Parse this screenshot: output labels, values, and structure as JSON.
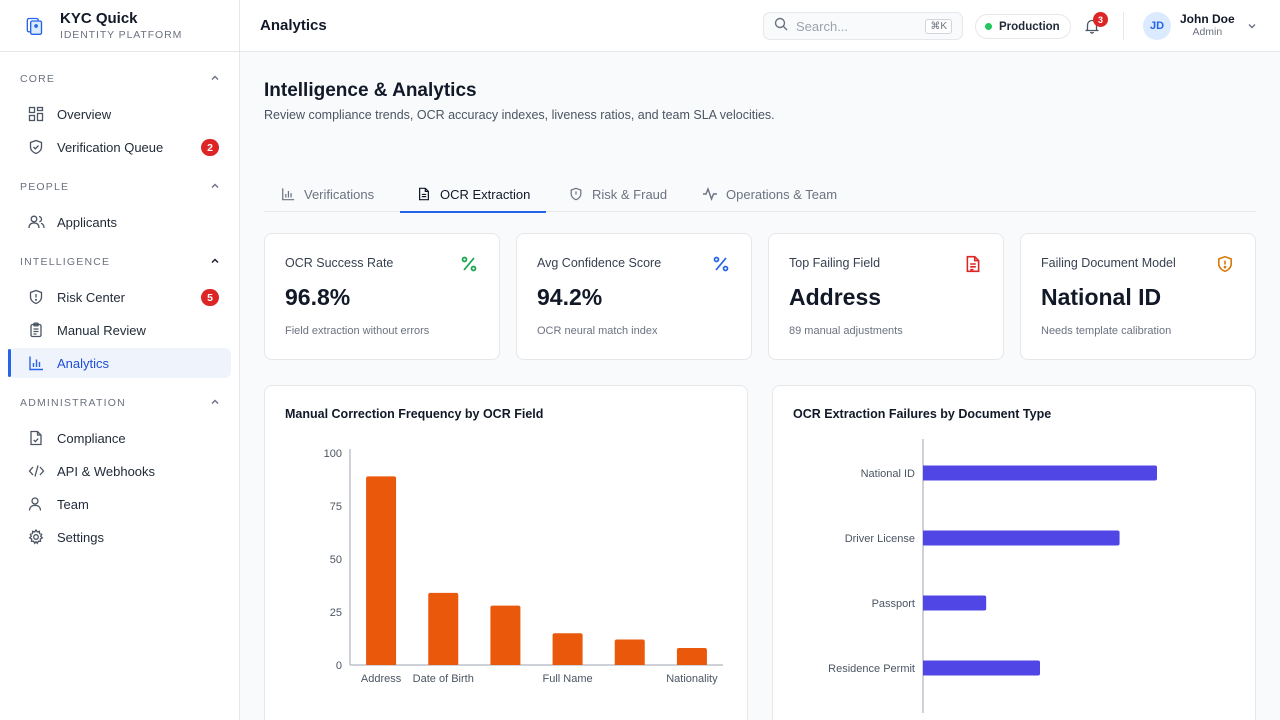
{
  "brand": {
    "name": "KYC Quick",
    "subtitle": "IDENTITY PLATFORM",
    "logo_icon": "shield-logo-icon"
  },
  "sidebar": {
    "sections": [
      {
        "title": "CORE",
        "items": [
          {
            "label": "Overview",
            "icon": "grid-icon",
            "badge": null,
            "active": false
          },
          {
            "label": "Verification Queue",
            "icon": "shield-check-icon",
            "badge": "2",
            "active": false
          }
        ]
      },
      {
        "title": "PEOPLE",
        "items": [
          {
            "label": "Applicants",
            "icon": "users-icon",
            "badge": null,
            "active": false
          }
        ]
      },
      {
        "title": "INTELLIGENCE",
        "items": [
          {
            "label": "Risk Center",
            "icon": "shield-alert-icon",
            "badge": "5",
            "active": false
          },
          {
            "label": "Manual Review",
            "icon": "clipboard-icon",
            "badge": null,
            "active": false
          },
          {
            "label": "Analytics",
            "icon": "bar-chart-icon",
            "badge": null,
            "active": true
          }
        ]
      },
      {
        "title": "ADMINISTRATION",
        "items": [
          {
            "label": "Compliance",
            "icon": "file-check-icon",
            "badge": null,
            "active": false
          },
          {
            "label": "API & Webhooks",
            "icon": "code-icon",
            "badge": null,
            "active": false
          },
          {
            "label": "Team",
            "icon": "user-icon",
            "badge": null,
            "active": false
          },
          {
            "label": "Settings",
            "icon": "gear-icon",
            "badge": null,
            "active": false
          }
        ]
      }
    ]
  },
  "topbar": {
    "title": "Analytics",
    "search_placeholder": "Search...",
    "search_shortcut": "⌘K",
    "environment": "Production",
    "notifications_count": "3",
    "user": {
      "initials": "JD",
      "name": "John Doe",
      "role": "Admin"
    }
  },
  "page": {
    "title": "Intelligence & Analytics",
    "subtitle": "Review compliance trends, OCR accuracy indexes, liveness ratios, and team SLA velocities."
  },
  "tabs": [
    {
      "label": "Verifications",
      "icon": "bar-chart-icon",
      "active": false
    },
    {
      "label": "OCR Extraction",
      "icon": "document-icon",
      "active": true
    },
    {
      "label": "Risk & Fraud",
      "icon": "shield-alert-icon",
      "active": false
    },
    {
      "label": "Operations & Team",
      "icon": "activity-icon",
      "active": false
    }
  ],
  "kpis": [
    {
      "title": "OCR Success Rate",
      "value": "96.8%",
      "note": "Field extraction without errors",
      "icon": "percent-icon",
      "color": "#16a34a"
    },
    {
      "title": "Avg Confidence Score",
      "value": "94.2%",
      "note": "OCR neural match index",
      "icon": "percent-icon",
      "color": "#2563eb"
    },
    {
      "title": "Top Failing Field",
      "value": "Address",
      "note": "89 manual adjustments",
      "icon": "file-alert-icon",
      "color": "#dc2626"
    },
    {
      "title": "Failing Document Model",
      "value": "National ID",
      "note": "Needs template calibration",
      "icon": "shield-warning-icon",
      "color": "#d97706"
    }
  ],
  "chart_data": [
    {
      "type": "bar",
      "title": "Manual Correction Frequency by OCR Field",
      "categories": [
        "Address",
        "Date of Birth",
        "",
        "Full Name",
        "",
        "Nationality"
      ],
      "values": [
        89,
        34,
        28,
        15,
        12,
        8
      ],
      "ylim": [
        0,
        100
      ],
      "yticks": [
        0,
        25,
        50,
        75,
        100
      ],
      "color": "#ea580c",
      "orientation": "vertical"
    },
    {
      "type": "bar",
      "title": "OCR Extraction Failures by Document Type",
      "categories": [
        "National ID",
        "Driver License",
        "Passport",
        "Residence Permit"
      ],
      "values": [
        100,
        84,
        27,
        50
      ],
      "xlim": [
        0,
        100
      ],
      "color": "#4f46e5",
      "orientation": "horizontal"
    }
  ]
}
